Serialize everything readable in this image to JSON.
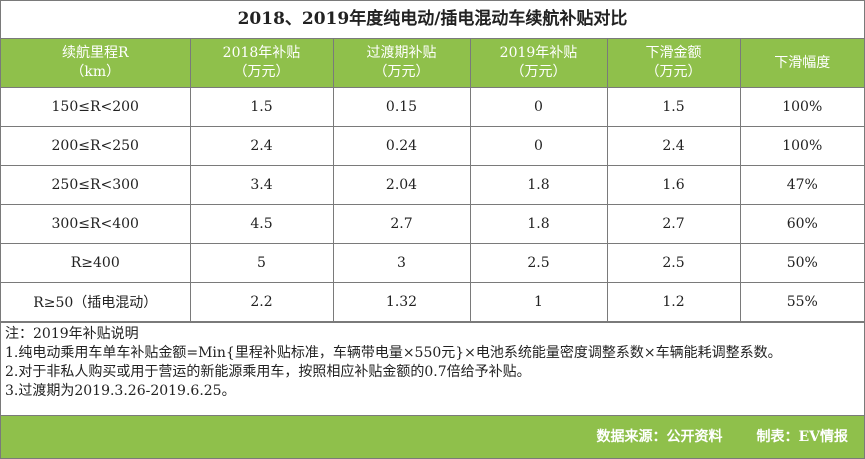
{
  "title": "2018、2019年度纯电动/插电混动车续航补贴对比",
  "headers": [
    [
      "续航里程R",
      "（km）"
    ],
    [
      "2018年补贴",
      "（万元）"
    ],
    [
      "过渡期补贴",
      "（万元）"
    ],
    [
      "2019年补贴",
      "（万元）"
    ],
    [
      "下滑金额",
      "（万元）"
    ],
    [
      "下滑幅度",
      ""
    ]
  ],
  "rows": [
    [
      "150≤R<200",
      "1.5",
      "0.15",
      "0",
      "1.5",
      "100%"
    ],
    [
      "200≤R<250",
      "2.4",
      "0.24",
      "0",
      "2.4",
      "100%"
    ],
    [
      "250≤R<300",
      "3.4",
      "2.04",
      "1.8",
      "1.6",
      "47%"
    ],
    [
      "300≤R<400",
      "4.5",
      "2.7",
      "1.8",
      "2.7",
      "60%"
    ],
    [
      "R≥400",
      "5",
      "3",
      "2.5",
      "2.5",
      "50%"
    ],
    [
      "R≥50（插电混动）",
      "2.2",
      "1.32",
      "1",
      "1.2",
      "55%"
    ]
  ],
  "notes": [
    "注：2019年补贴说明",
    "1.纯电动乘用车单车补贴金额=Min{里程补贴标准，车辆带电量×550元}×电池系统能量密度调整系数×车辆能耗调整系数。",
    "2.对于非私人购买或用于营运的新能源乘用车，按照相应补贴金额的0.7倍给予补贴。",
    "3.过渡期为2019.3.26-2019.6.25。"
  ],
  "footer": {
    "source": "数据来源：公开资料",
    "author": "制表：EV情报"
  },
  "colors": {
    "header_green": "#8fc04b",
    "border": "#7a7a7a"
  }
}
